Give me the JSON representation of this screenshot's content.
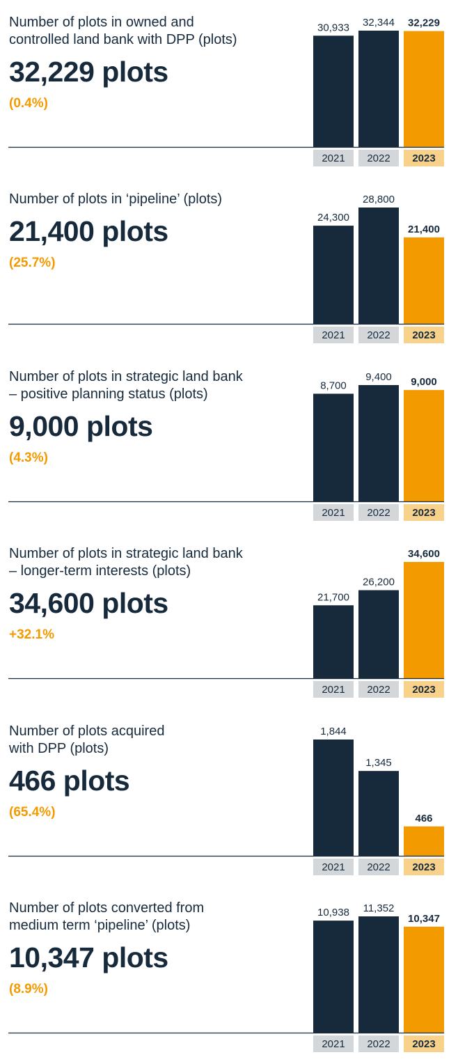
{
  "colors": {
    "navy": "#162a3c",
    "orange": "#f39a00",
    "year_box_grey": "#d4d7da",
    "year_box_highlight": "#f8d18a"
  },
  "chart_data": [
    {
      "type": "bar",
      "title": "Number of plots in owned and controlled land bank with DPP (plots)",
      "headline": "32,229 plots",
      "change": "(0.4%)",
      "categories": [
        "2021",
        "2022",
        "2023"
      ],
      "values": [
        30933,
        32344,
        32229
      ],
      "value_labels": [
        "30,933",
        "32,344",
        "32,229"
      ],
      "highlight_index": 2
    },
    {
      "type": "bar",
      "title": "Number of plots in ‘pipeline’ (plots)",
      "headline": "21,400 plots",
      "change": "(25.7%)",
      "categories": [
        "2021",
        "2022",
        "2023"
      ],
      "values": [
        24300,
        28800,
        21400
      ],
      "value_labels": [
        "24,300",
        "28,800",
        "21,400"
      ],
      "highlight_index": 2
    },
    {
      "type": "bar",
      "title": "Number of plots in strategic land bank – positive planning status (plots)",
      "headline": "9,000 plots",
      "change": "(4.3%)",
      "categories": [
        "2021",
        "2022",
        "2023"
      ],
      "values": [
        8700,
        9400,
        9000
      ],
      "value_labels": [
        "8,700",
        "9,400",
        "9,000"
      ],
      "highlight_index": 2
    },
    {
      "type": "bar",
      "title": "Number of plots in strategic land bank – longer-term interests (plots)",
      "headline": "34,600 plots",
      "change": "+32.1%",
      "categories": [
        "2021",
        "2022",
        "2023"
      ],
      "values": [
        21700,
        26200,
        34600
      ],
      "value_labels": [
        "21,700",
        "26,200",
        "34,600"
      ],
      "highlight_index": 2
    },
    {
      "type": "bar",
      "title": "Number of plots acquired with DPP (plots)",
      "headline": "466 plots",
      "change": "(65.4%)",
      "categories": [
        "2021",
        "2022",
        "2023"
      ],
      "values": [
        1844,
        1345,
        466
      ],
      "value_labels": [
        "1,844",
        "1,345",
        "466"
      ],
      "highlight_index": 2
    },
    {
      "type": "bar",
      "title": "Number of plots converted from medium term ‘pipeline’ (plots)",
      "headline": "10,347 plots",
      "change": "(8.9%)",
      "categories": [
        "2021",
        "2022",
        "2023"
      ],
      "values": [
        10938,
        11352,
        10347
      ],
      "value_labels": [
        "10,938",
        "11,352",
        "10,347"
      ],
      "highlight_index": 2
    }
  ]
}
